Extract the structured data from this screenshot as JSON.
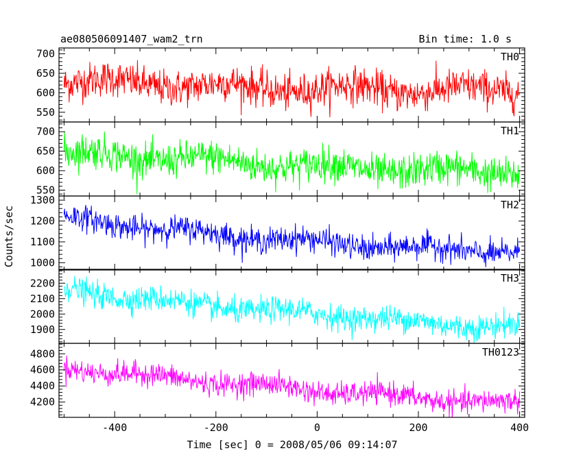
{
  "header": {
    "title": "ae080506091407_wam2_trn",
    "bin_time": "Bin time: 1.0 s"
  },
  "axes": {
    "xlabel": "Time [sec] 0 = 2008/05/06 09:14:07",
    "ylabel": "Counts/sec"
  },
  "chart_data": {
    "type": "line",
    "title": "ae080506091407_wam2_trn",
    "subtitle": "Bin time: 1.0 s",
    "xlabel": "Time [sec] 0 = 2008/05/06 09:14:07",
    "ylabel": "Counts/sec",
    "xlim": [
      -510,
      410
    ],
    "xticks": [
      -400,
      -200,
      0,
      200,
      400
    ],
    "x_range_data": [
      -500,
      400
    ],
    "bin_time_sec": 1.0,
    "grid": false,
    "panels": [
      {
        "name": "TH0",
        "color": "#ff0000",
        "ylim": [
          525,
          715
        ],
        "yticks": [
          550,
          600,
          650,
          700
        ],
        "trend": [
          [
            -500,
            630
          ],
          [
            -300,
            622
          ],
          [
            -100,
            612
          ],
          [
            0,
            608
          ],
          [
            100,
            612
          ],
          [
            200,
            605
          ],
          [
            400,
            608
          ]
        ],
        "noise_amplitude": 42
      },
      {
        "name": "TH1",
        "color": "#00ff00",
        "ylim": [
          535,
          725
        ],
        "yticks": [
          550,
          600,
          650,
          700
        ],
        "trend": [
          [
            -500,
            645
          ],
          [
            -300,
            632
          ],
          [
            -100,
            618
          ],
          [
            0,
            610
          ],
          [
            100,
            605
          ],
          [
            200,
            600
          ],
          [
            400,
            598
          ]
        ],
        "noise_amplitude": 40
      },
      {
        "name": "TH2",
        "color": "#0000ff",
        "ylim": [
          965,
          1320
        ],
        "yticks": [
          1000,
          1100,
          1200,
          1300
        ],
        "trend": [
          [
            -500,
            1215
          ],
          [
            -300,
            1160
          ],
          [
            -100,
            1115
          ],
          [
            0,
            1100
          ],
          [
            100,
            1080
          ],
          [
            200,
            1070
          ],
          [
            400,
            1050
          ]
        ],
        "noise_amplitude": 55
      },
      {
        "name": "TH3",
        "color": "#00ffff",
        "ylim": [
          1810,
          2290
        ],
        "yticks": [
          1900,
          2000,
          2100,
          2200
        ],
        "trend": [
          [
            -500,
            2160
          ],
          [
            -300,
            2080
          ],
          [
            -100,
            2020
          ],
          [
            0,
            2000
          ],
          [
            100,
            1980
          ],
          [
            200,
            1940
          ],
          [
            400,
            1920
          ]
        ],
        "noise_amplitude": 75
      },
      {
        "name": "TH0123",
        "color": "#ff00ff",
        "ylim": [
          4010,
          4930
        ],
        "yticks": [
          4200,
          4400,
          4600,
          4800
        ],
        "trend": [
          [
            -500,
            4630
          ],
          [
            -300,
            4500
          ],
          [
            -100,
            4400
          ],
          [
            0,
            4340
          ],
          [
            100,
            4300
          ],
          [
            200,
            4250
          ],
          [
            400,
            4180
          ]
        ],
        "noise_amplitude": 130
      }
    ]
  }
}
